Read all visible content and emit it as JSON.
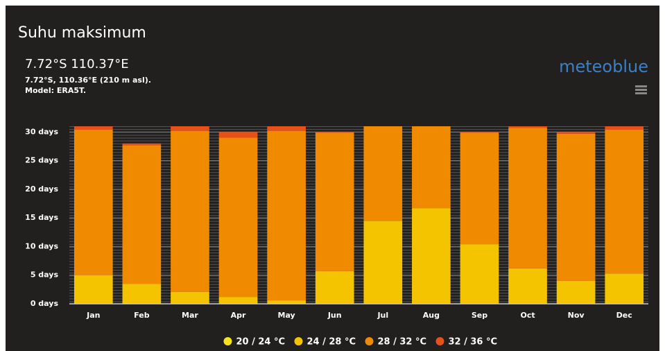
{
  "header": {
    "title": "Suhu maksimum",
    "location": "7.72°S 110.37°E",
    "details": "7.72°S, 110.36°E (210 m asl).",
    "model": "Model: ERA5T.",
    "brand": "meteoblue"
  },
  "chart_data": {
    "type": "stacked_bar",
    "categories": [
      "Jan",
      "Feb",
      "Mar",
      "Apr",
      "May",
      "Jun",
      "Jul",
      "Aug",
      "Sep",
      "Oct",
      "Nov",
      "Dec"
    ],
    "series": [
      {
        "name": "20 / 24 °C",
        "color": "#f7e21b",
        "values": [
          0,
          0,
          0,
          0,
          0,
          0,
          0,
          0,
          0,
          0,
          0,
          0
        ]
      },
      {
        "name": "24 / 28 °C",
        "color": "#f5c400",
        "values": [
          5,
          3.5,
          2.1,
          1.2,
          0.6,
          5.7,
          14.5,
          16.7,
          10.4,
          6.2,
          4,
          5.3
        ]
      },
      {
        "name": "28 / 32 °C",
        "color": "#f08a00",
        "values": [
          25.4,
          24.2,
          28.1,
          27.8,
          29.6,
          24.2,
          16.5,
          14.3,
          19.5,
          24.5,
          25.7,
          25.1
        ]
      },
      {
        "name": "32 / 36 °C",
        "color": "#e8501a",
        "values": [
          0.6,
          0.3,
          0.8,
          1,
          0.8,
          0.1,
          0,
          0,
          0.1,
          0.3,
          0.3,
          0.6
        ]
      }
    ],
    "ylim": [
      0,
      31
    ],
    "yticks": [
      {
        "value": 0,
        "label": "0 days"
      },
      {
        "value": 5,
        "label": "5 days"
      },
      {
        "value": 10,
        "label": "10 days"
      },
      {
        "value": 15,
        "label": "15 days"
      },
      {
        "value": 20,
        "label": "20 days"
      },
      {
        "value": 25,
        "label": "25 days"
      },
      {
        "value": 30,
        "label": "30 days"
      }
    ],
    "grid": true
  }
}
